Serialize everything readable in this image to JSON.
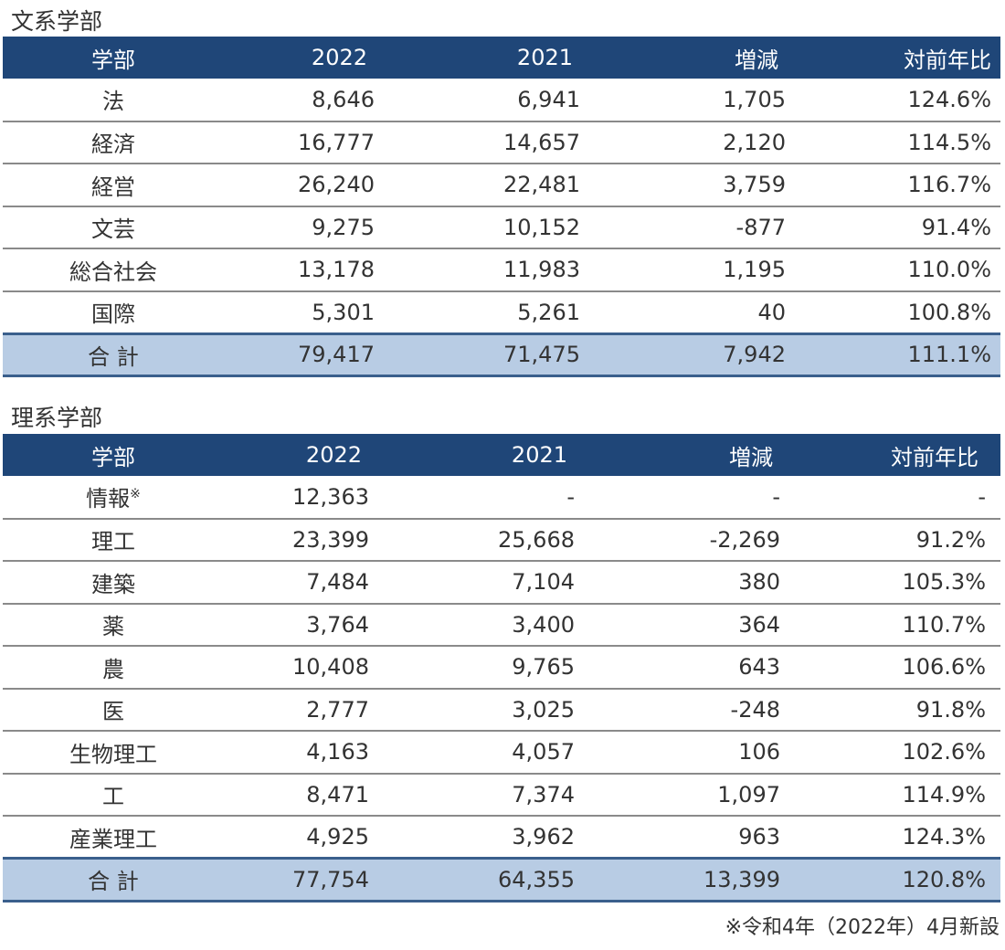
{
  "humanities": {
    "title": "文系学部",
    "headers": [
      "学部",
      "2022",
      "2021",
      "増減",
      "対前年比"
    ],
    "rows": [
      [
        "法",
        "8,646",
        "6,941",
        "1,705",
        "124.6%"
      ],
      [
        "経済",
        "16,777",
        "14,657",
        "2,120",
        "114.5%"
      ],
      [
        "経営",
        "26,240",
        "22,481",
        "3,759",
        "116.7%"
      ],
      [
        "文芸",
        "9,275",
        "10,152",
        "-877",
        "91.4%"
      ],
      [
        "総合社会",
        "13,178",
        "11,983",
        "1,195",
        "110.0%"
      ],
      [
        "国際",
        "5,301",
        "5,261",
        "40",
        "100.8%"
      ]
    ],
    "total": [
      "合 計",
      "79,417",
      "71,475",
      "7,942",
      "111.1%"
    ]
  },
  "science": {
    "title": "理系学部",
    "headers": [
      "学部",
      "2022",
      "2021",
      "増減",
      "対前年比"
    ],
    "rows": [
      [
        "情報",
        "12,363",
        "-",
        "-",
        "-"
      ],
      [
        "理工",
        "23,399",
        "25,668",
        "-2,269",
        "91.2%"
      ],
      [
        "建築",
        "7,484",
        "7,104",
        "380",
        "105.3%"
      ],
      [
        "薬",
        "3,764",
        "3,400",
        "364",
        "110.7%"
      ],
      [
        "農",
        "10,408",
        "9,765",
        "643",
        "106.6%"
      ],
      [
        "医",
        "2,777",
        "3,025",
        "-248",
        "91.8%"
      ],
      [
        "生物理工",
        "4,163",
        "4,057",
        "106",
        "102.6%"
      ],
      [
        "工",
        "8,471",
        "7,374",
        "1,097",
        "114.9%"
      ],
      [
        "産業理工",
        "4,925",
        "3,962",
        "963",
        "124.3%"
      ]
    ],
    "total": [
      "合 計",
      "77,754",
      "64,355",
      "13,399",
      "120.8%"
    ],
    "note_mark": "※"
  },
  "footnote": "※令和4年（2022年）4月新設",
  "colors": {
    "header_bg": "#1f4678",
    "total_bg": "#b8cce4",
    "total_border": "#3a5f8c"
  }
}
